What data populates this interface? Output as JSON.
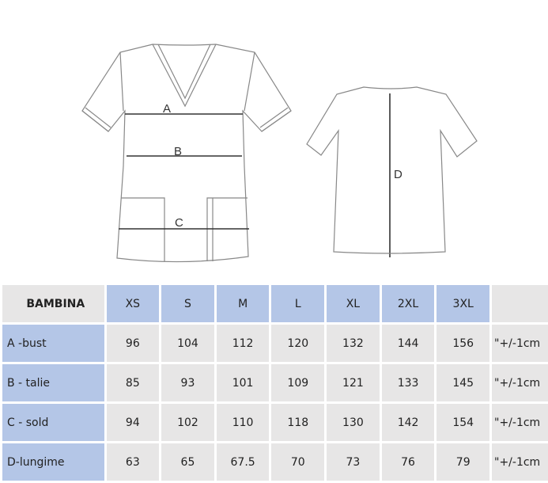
{
  "figure": {
    "labels": {
      "a": "A",
      "b": "B",
      "c": "C",
      "d": "D"
    }
  },
  "table": {
    "corner": "BAMBINA",
    "sizes": [
      "XS",
      "S",
      "M",
      "L",
      "XL",
      "2XL",
      "3XL"
    ],
    "tolerance_header": "",
    "rows": [
      {
        "label": "A -bust",
        "values": [
          "96",
          "104",
          "112",
          "120",
          "132",
          "144",
          "156"
        ],
        "tolerance": "\"+/-1cm"
      },
      {
        "label": "B - talie",
        "values": [
          "85",
          "93",
          "101",
          "109",
          "121",
          "133",
          "145"
        ],
        "tolerance": "\"+/-1cm"
      },
      {
        "label": "C - sold",
        "values": [
          "94",
          "102",
          "110",
          "118",
          "130",
          "142",
          "154"
        ],
        "tolerance": "\"+/-1cm"
      },
      {
        "label": "D-lungime",
        "values": [
          "63",
          "65",
          "67.5",
          "70",
          "73",
          "76",
          "79"
        ],
        "tolerance": "\"+/-1cm"
      }
    ]
  },
  "colors": {
    "header_blue": "#b4c6e7",
    "cell_gray": "#e7e6e6"
  }
}
